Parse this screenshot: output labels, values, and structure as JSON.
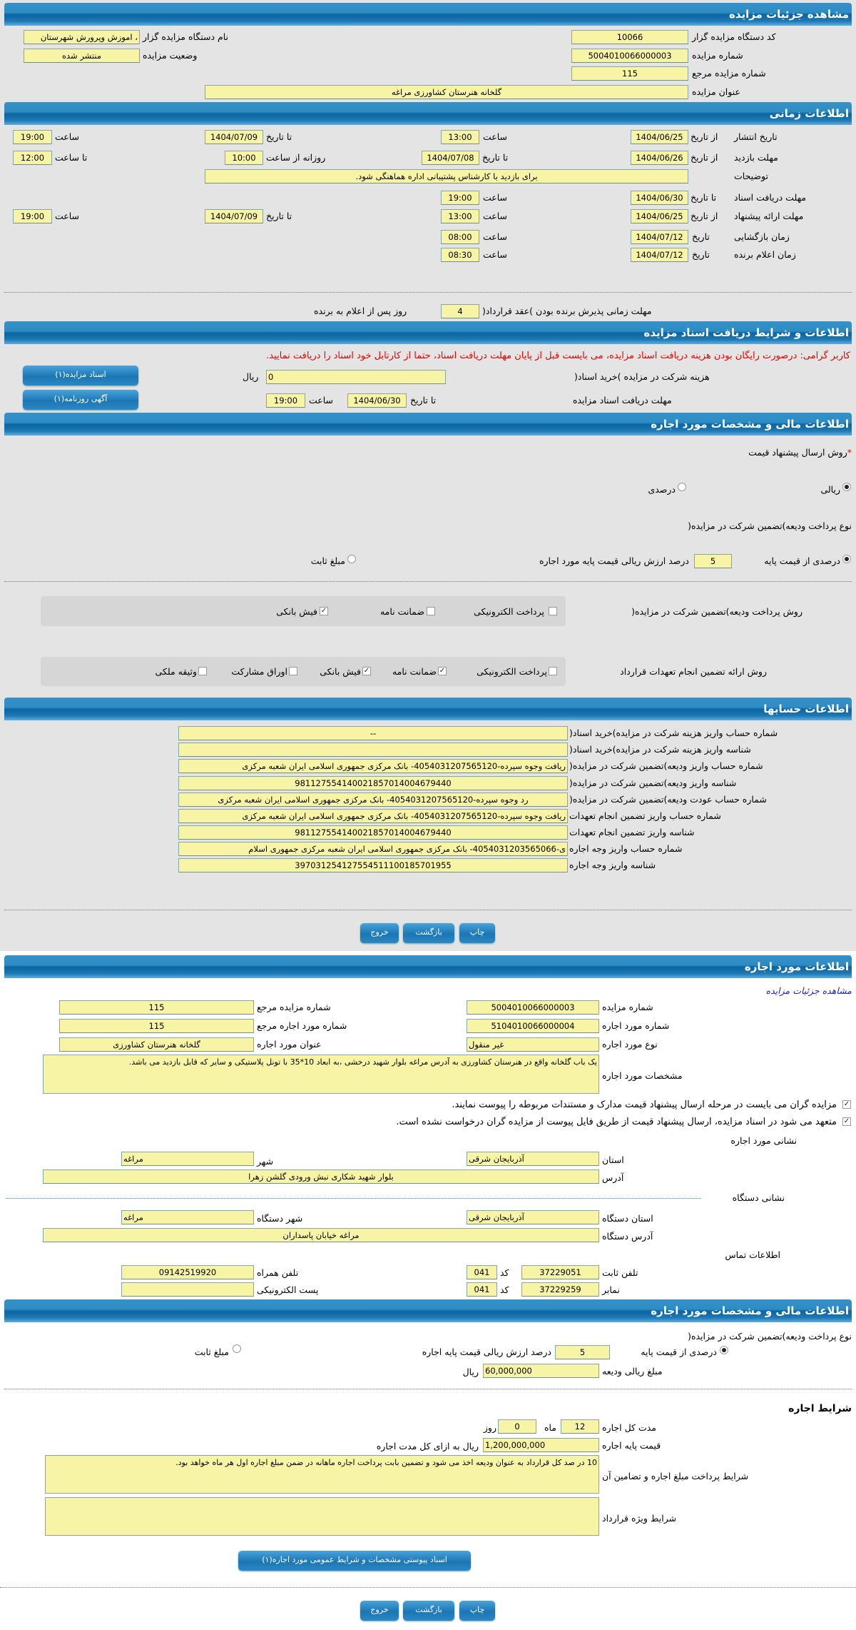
{
  "auction": {
    "title": "مشاهده جزئیات مزایده",
    "org_code_label": "کد دستگاه مزایده گزار",
    "org_code": "10066",
    "org_name_label": "نام دستگاه مزایده گزار",
    "org_name": "، اموزش وپرورش شهرستان",
    "number_label": "شماره مزایده",
    "number": "5004010066000003",
    "status_label": "وضعیت مزایده",
    "status": "منتشر شده",
    "ref_label": "شماره مزایده مرجع",
    "ref": "115",
    "subject_label": "عنوان مزایده",
    "subject": "گلخانه هنرستان کشاورزی مراغه"
  },
  "timing": {
    "title": "اطلاعات زمانی",
    "from_date": "از تاریخ",
    "to_date": "تا تاریخ",
    "date": "تاریخ",
    "hour": "ساعت",
    "to_hour": "تا ساعت",
    "daily_from": "روزانه از ساعت",
    "publish_label": "تاریخ انتشار",
    "publish_from": "1404/06/25",
    "publish_from_time": "13:00",
    "publish_to": "1404/07/09",
    "publish_to_time": "19:00",
    "visit_label": "مهلت بازدید",
    "visit_from": "1404/06/26",
    "visit_to": "1404/07/08",
    "visit_from_time": "10:00",
    "visit_to_time": "12:00",
    "notes_label": "توضیحات",
    "notes": "برای بازدید با کارشناس پشتیبانی اداره هماهنگی شود.",
    "docs_label": "مهلت دریافت اسناد",
    "docs_to": "1404/06/30",
    "docs_to_time": "19:00",
    "offer_label": "مهلت ارائه پیشنهاد",
    "offer_from": "1404/06/25",
    "offer_from_time": "13:00",
    "offer_to": "1404/07/09",
    "offer_to_time": "19:00",
    "opening_label": "زمان بازگشایی",
    "opening_date": "1404/07/12",
    "opening_time": "08:00",
    "winner_label": "زمان اعلام برنده",
    "winner_date": "1404/07/12",
    "winner_time": "08:30",
    "acceptance_label": "مهلت زمانی پذیرش برنده بودن )عقد قرارداد(",
    "acceptance_days": "4",
    "acceptance_suffix": "روز پس از اعلام به برنده"
  },
  "documents": {
    "title": "اطلاعات و شرایط دریافت اسناد مزایده",
    "notice": "کاربر گرامی: درصورت رایگان بودن هزینه دریافت اسناد مزایده، می بایست قبل از پایان مهلت دریافت اسناد، حتما از کارتابل خود اسناد را دریافت نمایید.",
    "fee_label": "هزینه شرکت در مزایده )خرید اسناد(",
    "fee": "0",
    "currency": "ریال",
    "deadline_label": "مهلت دریافت اسناد مزایده",
    "to_date": "تا تاریخ",
    "deadline_date": "1404/06/30",
    "hour": "ساعت",
    "deadline_time": "19:00",
    "auction_docs_button": "اسناد مزایده(۱)",
    "newspaper_button": "آگهی روزنامه(۱)"
  },
  "financial": {
    "title": "اطلاعات مالی و مشخصات مورد اجاره",
    "price_method_label": "روش ارسال پیشنهاد قیمت",
    "required_mark": "*",
    "method_rial": "ریالی",
    "method_percent": "درصدی",
    "method_selected": "ریالی",
    "deposit_type_label": "نوع پرداخت ودیعه)تضمین شرکت در مزایده(",
    "deposit_percent_label": "درصدی از قیمت پایه",
    "deposit_percent": "5",
    "deposit_percent_suffix": "درصد ارزش ریالی قیمت پایه مورد اجاره",
    "deposit_fixed_label": "مبلغ ثابت",
    "deposit_selected": "درصدی از قیمت پایه",
    "deposit_method_label": "روش پرداخت ودیعه)تضمین شرکت در مزایده(",
    "deposit_methods": [
      {
        "label": "پرداخت الکترونیکی",
        "checked": false
      },
      {
        "label": "ضمانت نامه",
        "checked": false
      },
      {
        "label": "فیش بانکی",
        "checked": true
      }
    ],
    "guarantee_label": "روش ارائه تضمین انجام تعهدات قرارداد",
    "guarantee_methods": [
      {
        "label": "پرداخت الکترونیکی",
        "checked": false
      },
      {
        "label": "ضمانت نامه",
        "checked": true
      },
      {
        "label": "فیش بانکی",
        "checked": true
      },
      {
        "label": "اوراق مشارکت",
        "checked": false
      },
      {
        "label": "وثیقه ملکی",
        "checked": false
      }
    ]
  },
  "accounts": {
    "title": "اطلاعات حسابها",
    "rows": [
      {
        "label": "شماره حساب واریز هزینه شرکت در مزایده)خرید اسناد(",
        "value": "--"
      },
      {
        "label": "شناسه واریز هزینه شرکت در مزایده)خرید اسناد(",
        "value": ""
      },
      {
        "label": "شماره حساب واریز ودیعه)تضمین شرکت در مزایده(",
        "value": "ریافت وجوه سپرده-4054031207565120- بانک مرکزی جمهوری اسلامی ایران شعبه مرکزی"
      },
      {
        "label": "شناسه واریز ودیعه)تضمین شرکت در مزایده(",
        "value": "981127554140021857014004679440"
      },
      {
        "label": "شماره حساب عودت ودیعه)تضمین شرکت در مزایده(",
        "value": "رد وجوه سپرده-4054031207565120- بانک مرکزی جمهوری اسلامی ایران شعبه مرکزی"
      },
      {
        "label": "شماره حساب واریز تضمین انجام تعهدات",
        "value": "ریافت وجوه سپرده-4054031207565120- بانک مرکزی جمهوری اسلامی ایران شعبه مرکزی"
      },
      {
        "label": "شناسه واریز تضمین انجام تعهدات",
        "value": "981127554140021857014004679440"
      },
      {
        "label": "شماره حساب واریز وجه اجاره",
        "value": "ی-4054031203565066- بانک مرکزی جمهوری اسلامی ایران شعبه مرکزی جمهوری اسلام"
      },
      {
        "label": "شناسه واریز وجه اجاره",
        "value": "397031254127554511100185701955"
      }
    ]
  },
  "actions": {
    "print": "چاپ",
    "back": "بازگشت",
    "exit": "خروج"
  },
  "lease": {
    "title": "اطلاعات مورد اجاره",
    "details_link": "مشاهده جزئیات مزایده",
    "auction_number_label": "شماره مزایده",
    "auction_number": "5004010066000003",
    "auction_ref_label": "شماره مزایده مرجع",
    "auction_ref": "115",
    "item_number_label": "شماره مورد اجاره",
    "item_number": "5104010066000004",
    "item_ref_label": "شماره مورد اجاره مرجع",
    "item_ref": "115",
    "item_type_label": "نوع مورد اجاره",
    "item_type": "غیر منقول",
    "item_title_label": "عنوان مورد اجاره",
    "item_title": "گلخانه هنرستان کشاورزی",
    "specs_label": "مشخصات مورد اجاره",
    "specs": "یک باب گلخانه واقع در هنرستان کشاورزی به آدرس مراغه بلوار شهید درخشی ،به ابعاد 10*35 با تونل پلاستیکی و سایر که قابل بازدید می باشد.",
    "check1": "مزایده گران می بایست در مرحله ارسال پیشنهاد قیمت مدارک و مستندات مربوطه را پیوست نمایند.",
    "check2": "متعهد می شود در اسناد مزایده، ارسال پیشنهاد قیمت از طریق فایل پیوست از مزایده گران درخواست نشده است.",
    "address_heading": "نشانی مورد اجاره",
    "province_label": "استان",
    "province": "آذربایجان شرقی",
    "city_label": "شهر",
    "city": "مراغه",
    "address_label": "آدرس",
    "address": "بلوار شهید شکاری نبش ورودی گلشن زهرا",
    "org_heading": "نشانی دستگاه",
    "org_province_label": "استان دستگاه",
    "org_province": "آذربایجان شرقی",
    "org_city_label": "شهر دستگاه",
    "org_city": "مراغه",
    "org_address_label": "آدرس دستگاه",
    "org_address": "مراغه خیابان پاسداران",
    "contact_heading": "اطلاعات تماس",
    "phone_label": "تلفن ثابت",
    "phone": "37229051",
    "code_label": "کد",
    "phone_code": "041",
    "mobile_label": "تلفن همراه",
    "mobile": "09142519920",
    "fax_label": "نمابر",
    "fax": "37229259",
    "fax_code": "041",
    "email_label": "پست الکترونیکی",
    "email": ""
  },
  "lease_financial": {
    "title": "اطلاعات مالی و مشخصات مورد اجاره",
    "deposit_type_label": "نوع پرداخت ودیعه)تضمین شرکت در مزایده(",
    "percent_label": "درصدی از قیمت پایه",
    "percent": "5",
    "percent_suffix": "درصد ارزش ریالی قیمت پایه اجاره",
    "fixed_label": "مبلغ ثابت",
    "deposit_amount_label": "مبلغ ریالی ودیعه",
    "deposit_amount": "60,000,000",
    "currency": "ریال",
    "terms_heading": "شرایط اجاره",
    "duration_label": "مدت کل اجاره",
    "months": "12",
    "months_unit": "ماه",
    "days": "0",
    "days_unit": "روز",
    "base_price_label": "قیمت پایه اجاره",
    "base_price": "1,200,000,000",
    "base_price_suffix": "ریال به ازای کل مدت اجاره",
    "payment_terms_label": "شرایط پرداخت مبلغ اجاره و تضامین آن",
    "payment_terms": "10 در صد کل قرارداد به عنوان ودیعه اخذ می شود و تضمین بابت پرداخت اجاره ماهانه در ضمن مبلغ اجاره اول هر ماه خواهد بود.",
    "special_terms_label": "شرایط ویژه قرارداد",
    "special_terms": "",
    "attachment_button": "اسناد پیوستی مشخصات و شرایط عمومی مورد اجاره(۱)"
  },
  "colors": {
    "header": "#1f78b4",
    "field": "#f8f4a6",
    "notice": "#ee0000",
    "link": "#1a1acc"
  }
}
